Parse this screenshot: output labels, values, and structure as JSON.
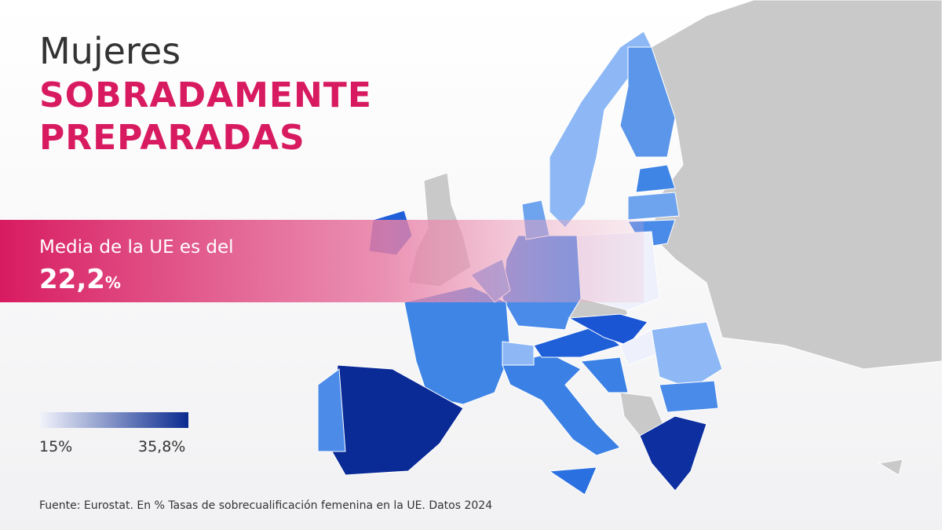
{
  "title": {
    "line1": "Mujeres",
    "line2": "SOBRADAMENTE",
    "line3": "PREPARADAS"
  },
  "banner": {
    "text": "Media de la UE es del",
    "value": "22,2",
    "unit": "%"
  },
  "legend": {
    "min": "15%",
    "max": "35,8%"
  },
  "source": "Fuente: Eurostat. En % Tasas de sobrecualificación femenina en la UE. Datos 2024"
}
